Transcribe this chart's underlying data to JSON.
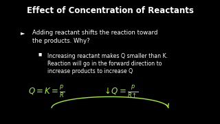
{
  "title": "Effect of Concentration of Reactants",
  "bg_color": "#1a7ad4",
  "title_color": "white",
  "bullet1_marker": "►",
  "bullet1": "Adding reactant shifts the reaction toward\nthe products. Why?",
  "bullet2_marker": "■",
  "bullet2": "Increasing reactant makes Q smaller than K.\nReaction will go in the forward direction to\nincrease products to increase Q",
  "formula_color": "#aaee22",
  "text_color": "white",
  "black_bar_width": 0.058,
  "title_fontsize": 8.5,
  "bullet1_fontsize": 6.2,
  "bullet2_fontsize": 5.6,
  "formula_fontsize": 8.5
}
